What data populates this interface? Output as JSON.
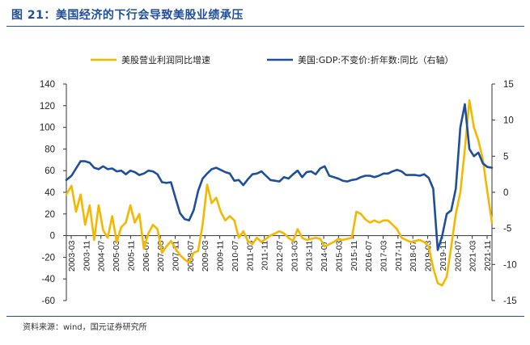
{
  "title": "图 21：美国经济的下行会导致美股业绩承压",
  "source": "资料来源：wind，国元证券研究所",
  "colors": {
    "profit": "#f5b800",
    "gdp": "#1f4e9a",
    "title": "#1f4e9a"
  },
  "chart_data": {
    "type": "line",
    "legend_position": "top",
    "grid": false,
    "x_categories": [
      "2003-03",
      "2004-07",
      "2005-03",
      "2005-11",
      "2006-07",
      "2007-03",
      "2007-11",
      "2008-07",
      "2009-03",
      "2009-11",
      "2010-07",
      "2011-03",
      "2011-11",
      "2012-07",
      "2013-03",
      "2013-11",
      "2014-07",
      "2015-03",
      "2015-11",
      "2016-07",
      "2017-03",
      "2017-11",
      "2018-07",
      "2019-03",
      "2019-11",
      "2020-07",
      "2021-03",
      "2021-11"
    ],
    "x_tick_labels": [
      "2003-03",
      "2003-11",
      "2004-07",
      "2005-03",
      "2005-11",
      "2006-07",
      "2007-03",
      "2007-11",
      "2008-07",
      "2009-03",
      "2009-11",
      "2010-07",
      "2011-03",
      "2011-11",
      "2012-07",
      "2013-03",
      "2013-11",
      "2014-07",
      "2015-03",
      "2015-11",
      "2016-07",
      "2017-03",
      "2017-11",
      "2018-07",
      "2019-03",
      "2019-11",
      "2020-07",
      "2021-03",
      "2021-11"
    ],
    "y_left": {
      "range": [
        -60,
        140
      ],
      "ticks": [
        "140",
        "120",
        "100",
        "80",
        "60",
        "40",
        "20",
        "0",
        "-20",
        "-40",
        "-60"
      ]
    },
    "y_right": {
      "range": [
        -15,
        15
      ],
      "ticks": [
        "15",
        "10",
        "5",
        "0",
        "-5",
        "-10",
        "-15"
      ]
    },
    "series": [
      {
        "name": "美股营业利润同比增速",
        "axis": "left",
        "color": "#f5b800",
        "x": [
          2003.17,
          2003.4,
          2003.6,
          2003.8,
          2004.0,
          2004.2,
          2004.4,
          2004.6,
          2004.8,
          2005.0,
          2005.2,
          2005.4,
          2005.6,
          2005.8,
          2006.0,
          2006.2,
          2006.4,
          2006.6,
          2006.8,
          2007.0,
          2007.2,
          2007.4,
          2007.6,
          2007.8,
          2008.0,
          2008.2,
          2008.4,
          2008.6,
          2008.8,
          2009.0,
          2009.2,
          2009.4,
          2009.6,
          2009.8,
          2010.0,
          2010.2,
          2010.4,
          2010.6,
          2010.8,
          2011.0,
          2011.2,
          2011.4,
          2011.6,
          2011.8,
          2012.0,
          2012.2,
          2012.4,
          2012.6,
          2012.8,
          2013.0,
          2013.2,
          2013.4,
          2013.6,
          2013.8,
          2014.0,
          2014.2,
          2014.4,
          2014.6,
          2014.8,
          2015.0,
          2015.2,
          2015.4,
          2015.6,
          2015.8,
          2016.0,
          2016.2,
          2016.4,
          2016.6,
          2016.8,
          2017.0,
          2017.2,
          2017.4,
          2017.6,
          2017.8,
          2018.0,
          2018.2,
          2018.4,
          2018.6,
          2018.8,
          2019.0,
          2019.2,
          2019.4,
          2019.6,
          2019.8,
          2020.0,
          2020.2,
          2020.4,
          2020.6,
          2020.8,
          2021.0,
          2021.2,
          2021.4,
          2021.6,
          2021.8,
          2022.0
        ],
        "values": [
          38,
          46,
          22,
          38,
          10,
          28,
          -4,
          28,
          5,
          -2,
          18,
          -6,
          8,
          12,
          28,
          12,
          20,
          -12,
          2,
          10,
          6,
          -16,
          -10,
          -5,
          -12,
          -18,
          -22,
          -25,
          -16,
          -14,
          10,
          47,
          30,
          35,
          22,
          14,
          18,
          14,
          -2,
          4,
          -5,
          -8,
          -2,
          -6,
          -3,
          0,
          2,
          4,
          2,
          -2,
          -5,
          6,
          -2,
          -4,
          -3,
          -2,
          -3,
          -10,
          -8,
          -6,
          -3,
          -4,
          -3,
          -2,
          22,
          20,
          15,
          12,
          14,
          12,
          14,
          14,
          10,
          6,
          -2,
          -4,
          -6,
          -5,
          -4,
          -6,
          -10,
          -30,
          -44,
          -46,
          -38,
          -10,
          20,
          40,
          80,
          125,
          100,
          88,
          70,
          40,
          12
        ],
        "values_note": ""
      },
      {
        "name": "美国:GDP:不变价:折年数:同比（右轴）",
        "axis": "right",
        "color": "#1f4e9a",
        "x": [
          2003.17,
          2003.4,
          2003.6,
          2003.8,
          2004.0,
          2004.2,
          2004.4,
          2004.6,
          2004.8,
          2005.0,
          2005.2,
          2005.4,
          2005.6,
          2005.8,
          2006.0,
          2006.2,
          2006.4,
          2006.6,
          2006.8,
          2007.0,
          2007.2,
          2007.4,
          2007.6,
          2007.8,
          2008.0,
          2008.2,
          2008.4,
          2008.6,
          2008.8,
          2009.0,
          2009.2,
          2009.4,
          2009.6,
          2009.8,
          2010.0,
          2010.2,
          2010.4,
          2010.6,
          2010.8,
          2011.0,
          2011.2,
          2011.4,
          2011.6,
          2011.8,
          2012.0,
          2012.2,
          2012.4,
          2012.6,
          2012.8,
          2013.0,
          2013.2,
          2013.4,
          2013.6,
          2013.8,
          2014.0,
          2014.2,
          2014.4,
          2014.6,
          2014.8,
          2015.0,
          2015.2,
          2015.4,
          2015.6,
          2015.8,
          2016.0,
          2016.2,
          2016.4,
          2016.6,
          2016.8,
          2017.0,
          2017.2,
          2017.4,
          2017.6,
          2017.8,
          2018.0,
          2018.2,
          2018.4,
          2018.6,
          2018.8,
          2019.0,
          2019.2,
          2019.4,
          2019.6,
          2019.8,
          2020.0,
          2020.2,
          2020.4,
          2020.6,
          2020.8,
          2021.0,
          2021.2,
          2021.4,
          2021.6,
          2021.8,
          2022.0
        ],
        "values": [
          1.7,
          2.3,
          3.3,
          4.3,
          4.3,
          4.1,
          3.4,
          3.2,
          3.6,
          3.2,
          3.3,
          2.9,
          3.0,
          2.5,
          3.0,
          2.8,
          2.4,
          2.6,
          3.0,
          2.9,
          2.5,
          1.4,
          1.3,
          1.4,
          -0.8,
          -2.9,
          -3.7,
          -3.9,
          -2.5,
          0.2,
          1.9,
          2.6,
          3.2,
          3.4,
          3.1,
          2.8,
          2.6,
          1.6,
          1.7,
          1.0,
          1.8,
          2.5,
          2.6,
          2.9,
          2.3,
          1.7,
          1.6,
          1.5,
          2.1,
          1.9,
          2.5,
          3.0,
          2.1,
          2.8,
          2.9,
          2.5,
          3.3,
          3.6,
          2.3,
          2.1,
          1.9,
          1.6,
          1.5,
          1.7,
          1.8,
          2.1,
          2.3,
          2.3,
          2.1,
          2.3,
          2.6,
          2.6,
          2.9,
          3.1,
          2.9,
          2.4,
          2.4,
          2.4,
          2.3,
          2.5,
          2.0,
          0.5,
          -8.0,
          -6.0,
          -3.0,
          -2.5,
          0.5,
          9.0,
          12.2,
          6.0,
          5.0,
          5.5,
          4.0,
          3.5,
          3.4
        ],
        "values_note": ""
      }
    ]
  }
}
